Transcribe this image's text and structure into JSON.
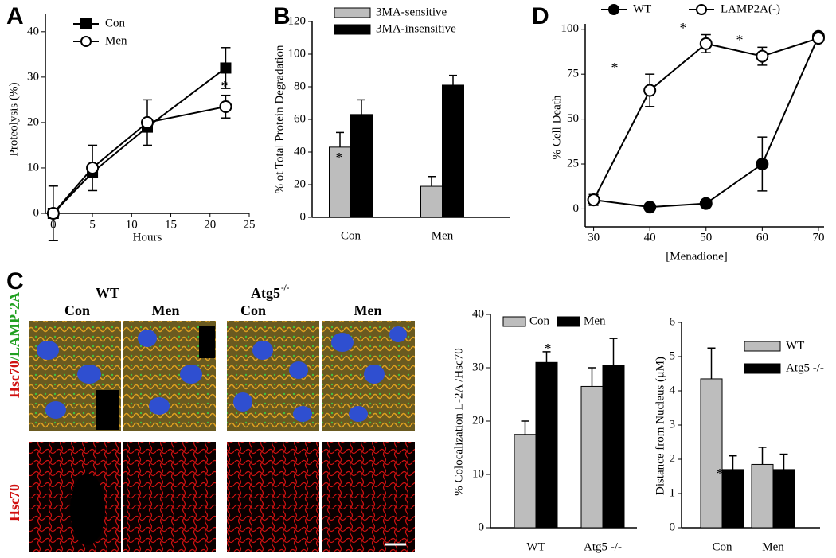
{
  "panel_labels": [
    "A",
    "B",
    "C",
    "D"
  ],
  "micrograph": {
    "groups": [
      "WT",
      "Atg5"
    ],
    "group_superscript": "-/-",
    "columns": [
      "Con",
      "Men",
      "Con",
      "Men"
    ],
    "row_labels": [
      "Hsc70",
      "/LAMP-2A",
      "Hsc70"
    ]
  },
  "chart_data": [
    {
      "type": "line",
      "x": [
        0,
        5,
        12,
        22
      ],
      "xlim": [
        -1,
        25
      ],
      "xticks": [
        0,
        5,
        10,
        15,
        20,
        25
      ],
      "ylim": [
        0,
        44
      ],
      "yticks": [
        0,
        10,
        20,
        30,
        40
      ],
      "xlabel": "Hours",
      "ylabel": "Proteolysis (%)",
      "annotations": [
        "*"
      ],
      "series": [
        {
          "name": "Con",
          "color": "#000000",
          "marker": "square",
          "values": [
            0,
            9,
            19,
            32
          ],
          "errors": [
            6,
            1,
            1,
            4.5
          ]
        },
        {
          "name": "Men",
          "color": "#000000",
          "marker": "open-circle",
          "values": [
            0,
            10,
            20,
            23.5
          ],
          "errors": [
            1,
            5,
            5,
            2.5
          ]
        }
      ]
    },
    {
      "type": "bar",
      "categories": [
        "Con",
        "Men"
      ],
      "ylim": [
        0,
        120
      ],
      "yticks": [
        0,
        20,
        40,
        60,
        80,
        100,
        120
      ],
      "ylabel": "% ot Total Protein Degradation",
      "annotations": [
        "*"
      ],
      "series": [
        {
          "name": "3MA-sensitive",
          "color": "#bdbdbd",
          "values": [
            43,
            19
          ],
          "errors": [
            9,
            6
          ]
        },
        {
          "name": "3MA-insensitive",
          "color": "#000000",
          "values": [
            63,
            81
          ],
          "errors": [
            9,
            6
          ]
        }
      ]
    },
    {
      "type": "line",
      "x": [
        30,
        40,
        50,
        60,
        70
      ],
      "xlim": [
        28.5,
        71
      ],
      "xticks": [
        30,
        40,
        50,
        60,
        70
      ],
      "ylim": [
        -10,
        103
      ],
      "yticks": [
        0,
        25,
        50,
        75,
        100
      ],
      "xlabel": "[Menadione]",
      "ylabel": "% Cell Death",
      "annotations": [
        "*",
        "*",
        "*"
      ],
      "series": [
        {
          "name": "WT",
          "color": "#000000",
          "marker": "circle",
          "values": [
            5,
            1,
            3,
            25,
            96
          ],
          "errors": [
            3,
            1,
            1,
            15,
            2
          ]
        },
        {
          "name": "LAMP2A(-)",
          "color": "#000000",
          "marker": "open-circle",
          "values": [
            5,
            66,
            92,
            85,
            95
          ],
          "errors": [
            3,
            9,
            5,
            5,
            2
          ]
        }
      ]
    },
    {
      "type": "bar",
      "categories": [
        "WT",
        "Atg5 -/-"
      ],
      "ylim": [
        0,
        40
      ],
      "yticks": [
        0,
        10,
        20,
        30,
        40
      ],
      "ylabel": "% Colocalization L-2A /Hsc70",
      "annotations": [
        "*"
      ],
      "series": [
        {
          "name": "Con",
          "color": "#bdbdbd",
          "values": [
            17.5,
            26.5
          ],
          "errors": [
            2.5,
            3.5
          ]
        },
        {
          "name": "Men",
          "color": "#000000",
          "values": [
            31,
            30.5
          ],
          "errors": [
            2,
            5
          ]
        }
      ]
    },
    {
      "type": "bar",
      "categories": [
        "Con",
        "Men"
      ],
      "ylim": [
        0,
        6
      ],
      "yticks": [
        0,
        1,
        2,
        3,
        4,
        5,
        6
      ],
      "ylabel": "Distance from Nucleus (µM)",
      "annotations": [
        "*"
      ],
      "series": [
        {
          "name": "WT",
          "color": "#bdbdbd",
          "values": [
            4.35,
            1.85
          ],
          "errors": [
            0.9,
            0.5
          ]
        },
        {
          "name": "Atg5 -/-",
          "color": "#000000",
          "values": [
            1.7,
            1.7
          ],
          "errors": [
            0.4,
            0.45
          ]
        }
      ]
    }
  ]
}
